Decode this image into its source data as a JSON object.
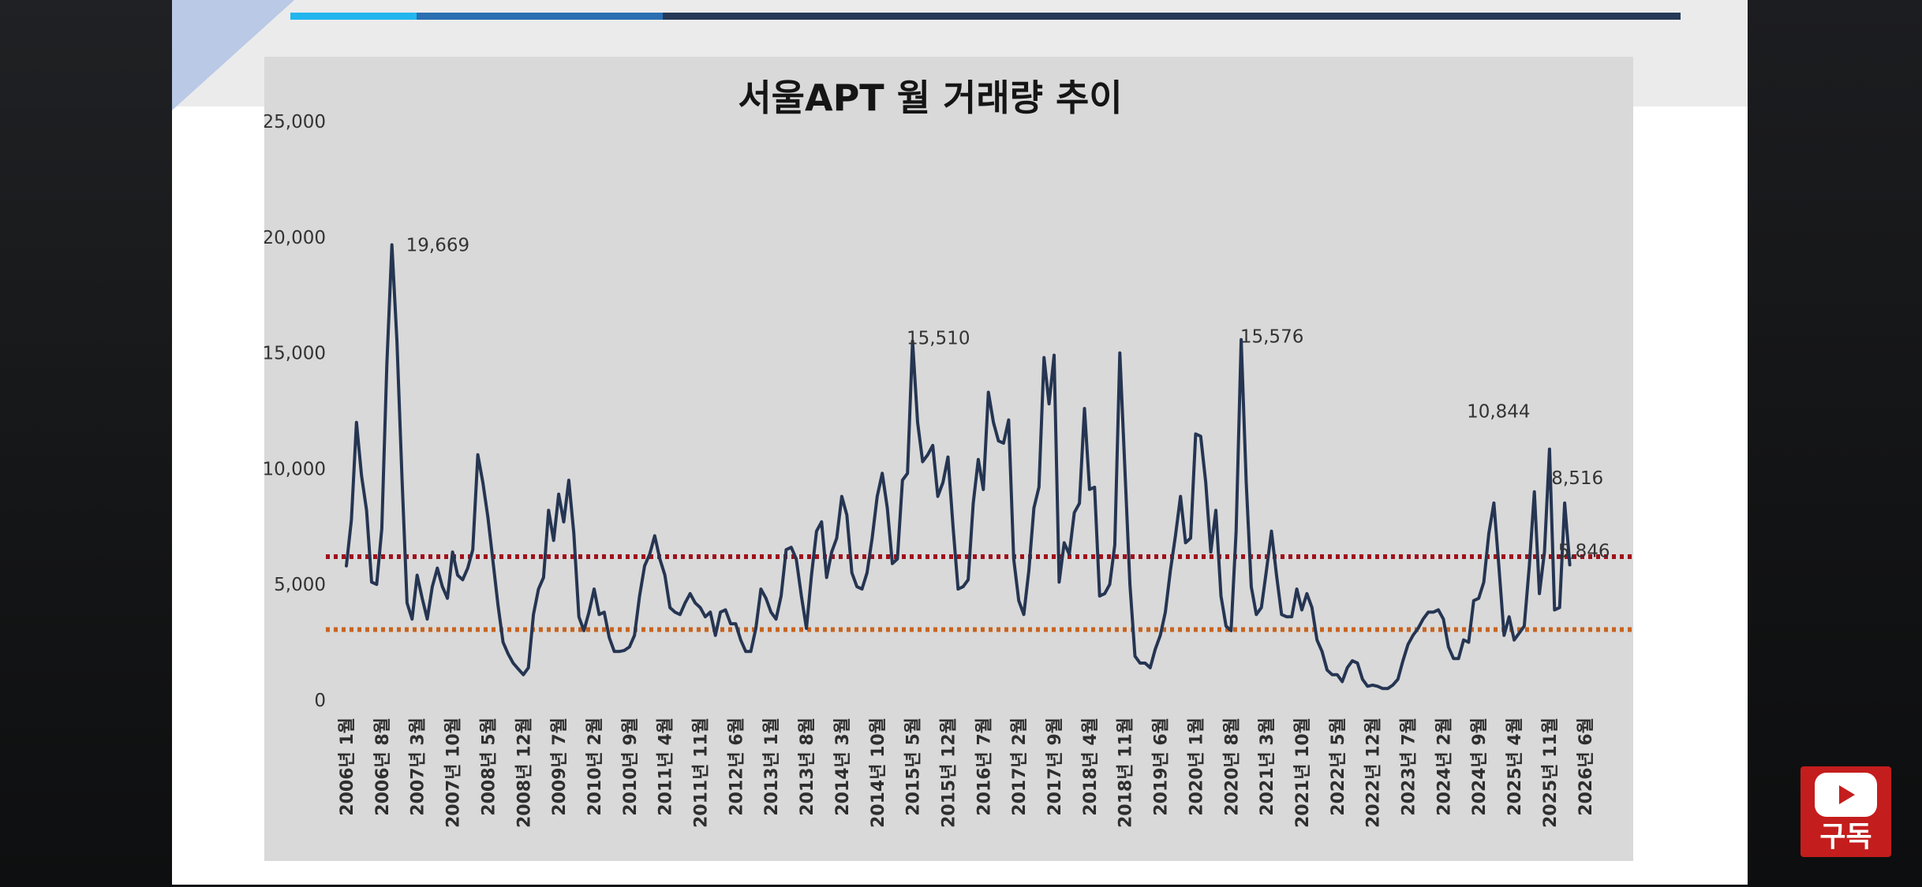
{
  "subscribe": {
    "label": "구독",
    "icon": "youtube-play-icon",
    "color": "#c41d1d"
  },
  "colors": {
    "line": "#253552",
    "avg_line_upper": "#a0101a",
    "avg_line_lower": "#c9631f",
    "panel": "#d9d9d9",
    "accent_stripes": [
      "#22b6ee",
      "#2a6fb2",
      "#253a58"
    ]
  },
  "chart_data": {
    "type": "line",
    "title": "서울APT 월 거래량 추이",
    "xlabel": "",
    "ylabel": "",
    "ylim": [
      0,
      25000
    ],
    "yticks": [
      0,
      5000,
      10000,
      15000,
      20000,
      25000
    ],
    "ytick_labels": [
      "0",
      "5,000",
      "10,000",
      "15,000",
      "20,000",
      "25,000"
    ],
    "x_range": [
      "2006-01",
      "2026-09"
    ],
    "xtick_labels": [
      "2006년 1월",
      "2006년 8월",
      "2007년 3월",
      "2007년 10월",
      "2008년 5월",
      "2008년 12월",
      "2009년 7월",
      "2010년 2월",
      "2010년 9월",
      "2011년 4월",
      "2011년 11월",
      "2012년 6월",
      "2013년 1월",
      "2013년 8월",
      "2014년 3월",
      "2014년 10월",
      "2015년 5월",
      "2015년 12월",
      "2016년 7월",
      "2017년 2월",
      "2017년 9월",
      "2018년 4월",
      "2018년 11월",
      "2019년 6월",
      "2020년 1월",
      "2020년 8월",
      "2021년 3월",
      "2021년 10월",
      "2022년 5월",
      "2022년 12월",
      "2023년 7월",
      "2024년 2월",
      "2024년 9월",
      "2025년 4월",
      "2025년 11월",
      "2026년 6월"
    ],
    "grid": false,
    "legend": "none",
    "series": [
      {
        "start": "2006-01",
        "step": "month",
        "values": [
          5800,
          7800,
          12000,
          9700,
          8200,
          5100,
          5000,
          7400,
          14500,
          19669,
          15500,
          9600,
          4200,
          3500,
          5400,
          4400,
          3500,
          4900,
          5700,
          4900,
          4400,
          6400,
          5400,
          5200,
          5700,
          6500,
          10600,
          9400,
          7900,
          6000,
          4100,
          2500,
          2000,
          1600,
          1350,
          1100,
          1400,
          3700,
          4800,
          5300,
          8200,
          6900,
          8900,
          7700,
          9500,
          7200,
          3600,
          3000,
          3800,
          4800,
          3700,
          3800,
          2700,
          2100,
          2100,
          2150,
          2300,
          2800,
          4500,
          5800,
          6300,
          7100,
          6100,
          5400,
          4000,
          3800,
          3700,
          4200,
          4600,
          4200,
          4000,
          3600,
          3800,
          2800,
          3800,
          3900,
          3300,
          3300,
          2600,
          2100,
          2100,
          3100,
          4800,
          4400,
          3800,
          3500,
          4500,
          6500,
          6600,
          6100,
          4500,
          3100,
          5400,
          7300,
          7700,
          5300,
          6400,
          7000,
          8800,
          8000,
          5500,
          4900,
          4800,
          5500,
          7000,
          8800,
          9800,
          8300,
          5900,
          6100,
          9500,
          9800,
          15510,
          12000,
          10300,
          10600,
          11000,
          8800,
          9400,
          10500,
          7500,
          4800,
          4900,
          5200,
          8500,
          10400,
          9100,
          13300,
          12000,
          11200,
          11100,
          12100,
          6100,
          4300,
          3700,
          5600,
          8300,
          9200,
          14800,
          12800,
          14900,
          5100,
          6800,
          6300,
          8100,
          8500,
          12600,
          9100,
          9200,
          4500,
          4600,
          5000,
          6700,
          15000,
          10000,
          5000,
          1900,
          1600,
          1600,
          1400,
          2200,
          2800,
          3800,
          5600,
          7100,
          8800,
          6800,
          7000,
          11500,
          11400,
          9400,
          6400,
          8200,
          4500,
          3200,
          3000,
          7300,
          15576,
          9400,
          4900,
          3700,
          4000,
          5600,
          7300,
          5400,
          3700,
          3600,
          3600,
          4800,
          3900,
          4600,
          4000,
          2600,
          2100,
          1300,
          1100,
          1100,
          800,
          1400,
          1700,
          1600,
          900,
          600,
          650,
          600,
          500,
          500,
          650,
          900,
          1700,
          2400,
          2800,
          3100,
          3500,
          3800,
          3800,
          3900,
          3500,
          2300,
          1800,
          1800,
          2600,
          2500,
          4300,
          4400,
          5100,
          7200,
          8516,
          5700,
          2800,
          3600,
          2600,
          2900,
          3200,
          5800,
          9000,
          4600,
          6400,
          10844,
          3900,
          4000,
          8516,
          5846
        ]
      }
    ],
    "reference_lines": [
      {
        "value": 6200,
        "style": "dotted",
        "color": "#a0101a"
      },
      {
        "value": 3050,
        "style": "dotted",
        "color": "#c9631f"
      }
    ],
    "annotations": [
      {
        "text": "19,669",
        "x": "2006-10",
        "y": 19669
      },
      {
        "text": "15,510",
        "x": "2015-01",
        "y": 15510
      },
      {
        "text": "15,576",
        "x": "2020-07",
        "y": 15576
      },
      {
        "text": "10,844",
        "x": "2025-04",
        "y": 10844
      },
      {
        "text": "8,516",
        "x": "2025-07",
        "y": 8516
      },
      {
        "text": "5,846",
        "x": "2025-08",
        "y": 5846
      }
    ]
  }
}
